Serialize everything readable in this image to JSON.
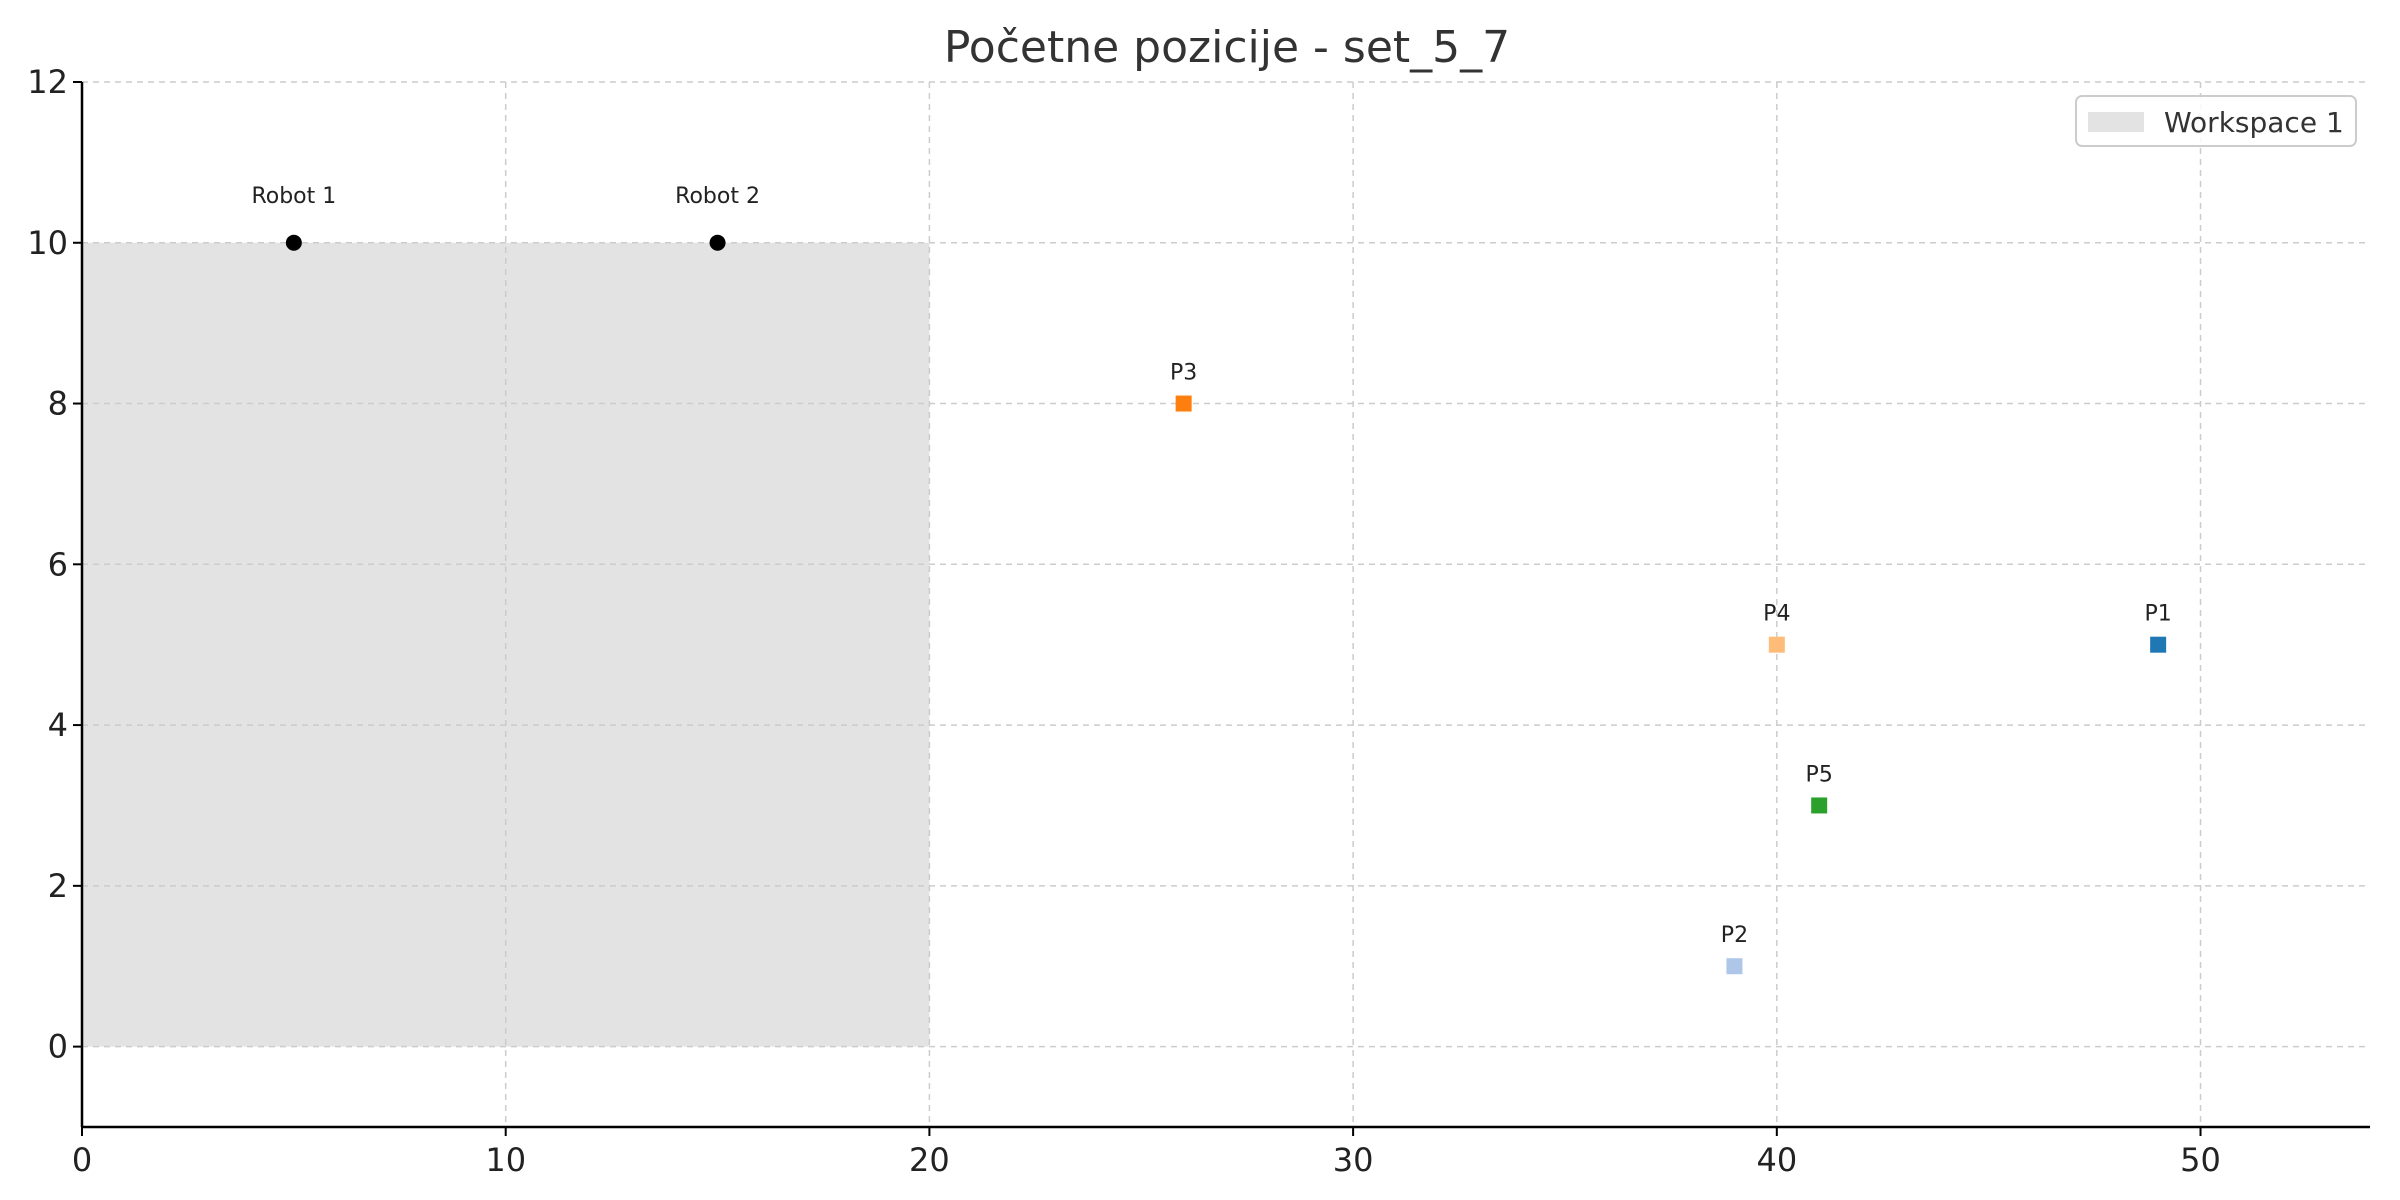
{
  "chart_data": {
    "type": "scatter",
    "title": "Početne pozicije - set_5_7",
    "xlabel": "",
    "ylabel": "",
    "xlim": [
      0,
      54
    ],
    "ylim": [
      -1,
      12
    ],
    "x_ticks": [
      0,
      10,
      20,
      30,
      40,
      50
    ],
    "y_ticks": [
      0,
      2,
      4,
      6,
      8,
      10,
      12
    ],
    "grid": true,
    "legend": {
      "placement": "top-right",
      "entries": [
        {
          "label": "Workspace 1",
          "color": "#e3e3e3"
        }
      ]
    },
    "workspaces": [
      {
        "name": "Workspace 1",
        "x_range": [
          0,
          20
        ],
        "y_range": [
          0,
          10
        ],
        "color": "#e3e3e3"
      }
    ],
    "robots": [
      {
        "label": "Robot 1",
        "x": 5,
        "y": 10,
        "color": "#000000"
      },
      {
        "label": "Robot 2",
        "x": 15,
        "y": 10,
        "color": "#000000"
      }
    ],
    "points": [
      {
        "label": "P1",
        "x": 49,
        "y": 5,
        "color": "#1f77b4"
      },
      {
        "label": "P2",
        "x": 39,
        "y": 1,
        "color": "#aec7e8"
      },
      {
        "label": "P3",
        "x": 26,
        "y": 8,
        "color": "#ff7f0e"
      },
      {
        "label": "P4",
        "x": 40,
        "y": 5,
        "color": "#ffbb78"
      },
      {
        "label": "P5",
        "x": 41,
        "y": 3,
        "color": "#2ca02c"
      }
    ]
  }
}
